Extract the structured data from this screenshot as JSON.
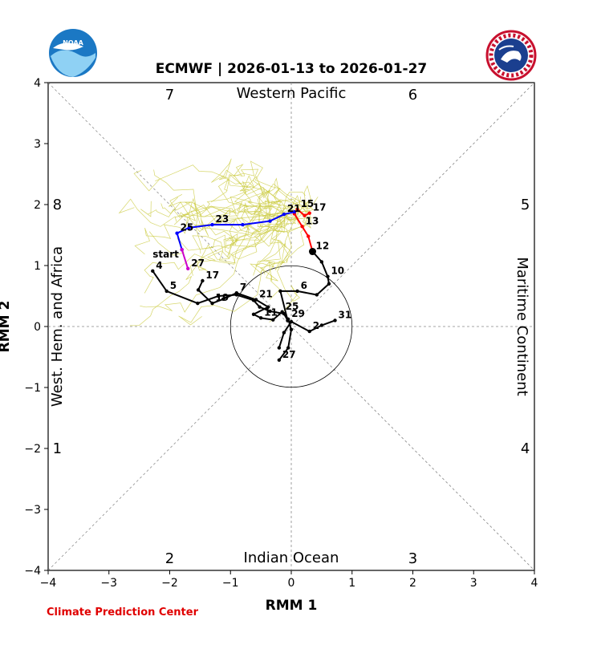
{
  "chart_data": {
    "type": "line",
    "title": "ECMWF | 2026-01-13 to 2026-01-27",
    "xlabel": "RMM 1",
    "ylabel": "RMM 2",
    "xlim": [
      -4,
      4
    ],
    "ylim": [
      -4,
      4
    ],
    "xticks": [
      "−4",
      "−3",
      "−2",
      "−1",
      "0",
      "1",
      "2",
      "3",
      "4"
    ],
    "yticks": [
      "−4",
      "−3",
      "−2",
      "−1",
      "0",
      "1",
      "2",
      "3",
      "4"
    ],
    "phase_labels": [
      {
        "label": "1",
        "x": -3.85,
        "y": -2.0
      },
      {
        "label": "2",
        "x": -2.0,
        "y": -3.8
      },
      {
        "label": "3",
        "x": 2.0,
        "y": -3.8
      },
      {
        "label": "4",
        "x": 3.85,
        "y": -2.0
      },
      {
        "label": "5",
        "x": 3.85,
        "y": 2.0
      },
      {
        "label": "6",
        "x": 2.0,
        "y": 3.8
      },
      {
        "label": "7",
        "x": -2.0,
        "y": 3.8
      },
      {
        "label": "8",
        "x": -3.85,
        "y": 2.0
      }
    ],
    "regions": {
      "top": "Western Pacific",
      "bottom": "Indian Ocean",
      "left": "West. Hem. and Africa",
      "right": "Maritime Continent"
    },
    "credit": "Climate Prediction Center",
    "series": [
      {
        "color": "#000000",
        "points": [
          {
            "x": -2.28,
            "y": 0.91,
            "label": "4"
          },
          {
            "x": -2.05,
            "y": 0.58,
            "label": "5"
          },
          {
            "x": -1.54,
            "y": 0.38
          },
          {
            "x": -1.2,
            "y": 0.5
          },
          {
            "x": -0.9,
            "y": 0.52
          },
          {
            "x": -0.62,
            "y": 0.43
          },
          {
            "x": -0.52,
            "y": 0.32
          },
          {
            "x": -0.35,
            "y": 0.25
          },
          {
            "x": -0.12,
            "y": 0.21
          },
          {
            "x": -0.06,
            "y": 0.1
          },
          {
            "x": -0.18,
            "y": 0.58
          },
          {
            "x": 0.1,
            "y": 0.58,
            "label": "6"
          },
          {
            "x": 0.42,
            "y": 0.52
          },
          {
            "x": 0.62,
            "y": 0.7
          },
          {
            "x": 0.6,
            "y": 0.82,
            "label": "10"
          },
          {
            "x": 0.5,
            "y": 1.06
          },
          {
            "x": 0.35,
            "y": 1.23,
            "label": "12"
          }
        ]
      },
      {
        "color": "#000000",
        "points": [
          {
            "x": -1.46,
            "y": 0.75,
            "label": "17"
          },
          {
            "x": -1.53,
            "y": 0.6
          },
          {
            "x": -1.3,
            "y": 0.38,
            "label": "19"
          },
          {
            "x": -1.12,
            "y": 0.45
          },
          {
            "x": -0.9,
            "y": 0.55,
            "label": "7"
          },
          {
            "x": -0.58,
            "y": 0.44,
            "label": "21"
          },
          {
            "x": -0.38,
            "y": 0.32
          },
          {
            "x": -0.62,
            "y": 0.2
          },
          {
            "x": -0.5,
            "y": 0.14,
            "label": "11"
          },
          {
            "x": -0.3,
            "y": 0.11
          },
          {
            "x": -0.15,
            "y": 0.24,
            "label": "25"
          },
          {
            "x": -0.05,
            "y": 0.12,
            "label": "29"
          },
          {
            "x": 0.0,
            "y": -0.05
          },
          {
            "x": -0.05,
            "y": -0.35
          },
          {
            "x": -0.2,
            "y": -0.55,
            "label": "27"
          }
        ]
      },
      {
        "color": "#000000",
        "points": [
          {
            "x": -0.2,
            "y": -0.35
          },
          {
            "x": -0.12,
            "y": -0.1
          },
          {
            "x": 0.0,
            "y": 0.08
          },
          {
            "x": 0.3,
            "y": -0.08,
            "label": "2"
          },
          {
            "x": 0.5,
            "y": 0.02
          },
          {
            "x": 0.72,
            "y": 0.1,
            "label": "31"
          }
        ]
      },
      {
        "color": "#ff0000",
        "points": [
          {
            "x": 0.35,
            "y": 1.23
          },
          {
            "x": 0.28,
            "y": 1.48
          },
          {
            "x": 0.18,
            "y": 1.64,
            "label": "13"
          },
          {
            "x": 0.05,
            "y": 1.85
          },
          {
            "x": 0.1,
            "y": 1.92,
            "label": "15"
          },
          {
            "x": 0.22,
            "y": 1.82
          },
          {
            "x": 0.3,
            "y": 1.86,
            "label": "17"
          }
        ]
      },
      {
        "color": "#0000ff",
        "points": [
          {
            "x": 0.05,
            "y": 1.88
          },
          {
            "x": -0.12,
            "y": 1.84,
            "label": "21"
          },
          {
            "x": -0.35,
            "y": 1.73
          },
          {
            "x": -0.8,
            "y": 1.67
          },
          {
            "x": -1.3,
            "y": 1.67,
            "label": "23"
          },
          {
            "x": -1.68,
            "y": 1.62
          },
          {
            "x": -1.88,
            "y": 1.53,
            "label": "25"
          },
          {
            "x": -1.8,
            "y": 1.26
          }
        ]
      },
      {
        "color": "#cc00cc",
        "points": [
          {
            "x": -1.8,
            "y": 1.26
          },
          {
            "x": -1.7,
            "y": 0.95,
            "label": "27"
          }
        ]
      }
    ],
    "annotations": [
      {
        "text": "start",
        "x": -2.28,
        "y": 1.13
      }
    ]
  }
}
